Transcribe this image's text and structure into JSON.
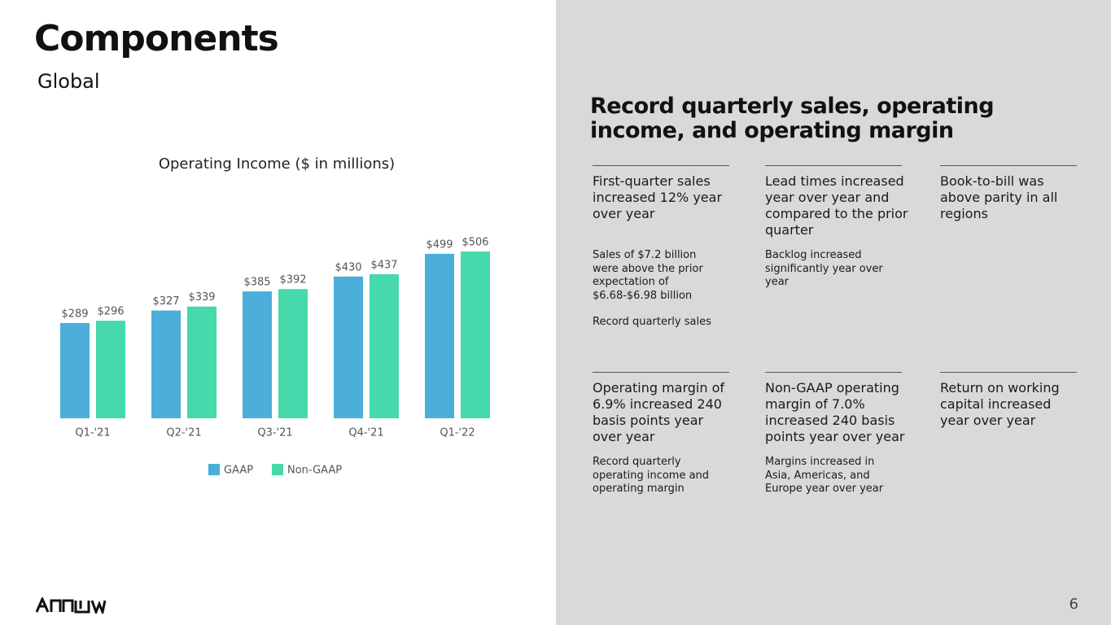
{
  "header": {
    "title": "Components",
    "subtitle": "Global"
  },
  "chart_data": {
    "type": "bar",
    "title": "Operating Income ($ in millions)",
    "categories": [
      "Q1-'21",
      "Q2-'21",
      "Q3-'21",
      "Q4-'21",
      "Q1-'22"
    ],
    "series": [
      {
        "name": "GAAP",
        "color": "#4aaed9",
        "values": [
          289,
          327,
          385,
          430,
          499
        ],
        "value_labels": [
          "$289",
          "$327",
          "$385",
          "$430",
          "$499"
        ]
      },
      {
        "name": "Non-GAAP",
        "color": "#45d9ab",
        "values": [
          296,
          339,
          392,
          437,
          506
        ],
        "value_labels": [
          "$296",
          "$339",
          "$392",
          "$437",
          "$506"
        ]
      }
    ]
  },
  "panel": {
    "title": "Record quarterly sales, operating income, and operating margin",
    "items": [
      {
        "heading": "First-quarter sales increased 12% year over year",
        "details": [
          "Sales of $7.2 billion were above the prior expectation of $6.68-$6.98 billion",
          "Record quarterly sales"
        ]
      },
      {
        "heading": "Lead times increased year over year and compared to the prior quarter",
        "details": [
          "Backlog increased significantly year over year"
        ]
      },
      {
        "heading": "Book-to-bill was above parity in all regions",
        "details": []
      },
      {
        "heading": "Operating margin of 6.9% increased 240 basis points year over year",
        "details": [
          "Record quarterly operating income and operating margin"
        ]
      },
      {
        "heading": "Non-GAAP operating margin of 7.0% increased 240 basis points year over year",
        "details": [
          "Margins increased in Asia, Americas, and Europe year over year"
        ]
      },
      {
        "heading": "Return on working capital increased year over year",
        "details": []
      }
    ]
  },
  "page_number": "6"
}
